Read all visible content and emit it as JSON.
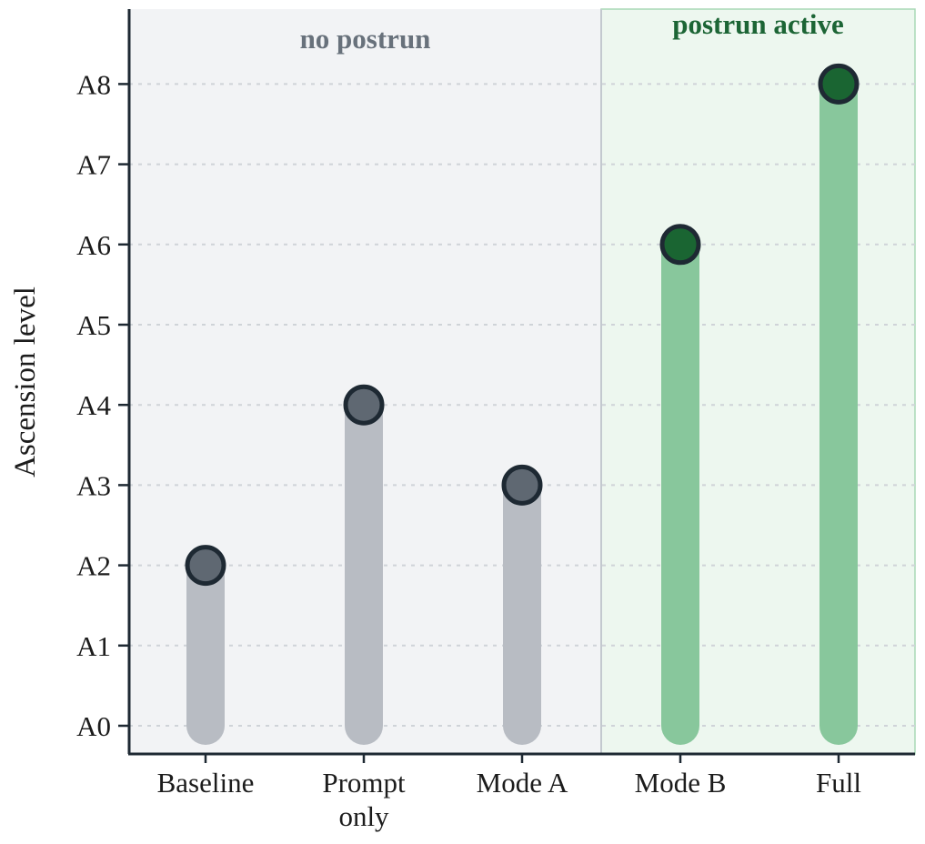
{
  "chart_data": {
    "type": "lollipop",
    "ylabel": "Ascension level",
    "y_ticks": [
      "A0",
      "A1",
      "A2",
      "A3",
      "A4",
      "A5",
      "A6",
      "A7",
      "A8"
    ],
    "ylim": [
      0,
      8
    ],
    "grid": "horizontal dotted",
    "categories": [
      {
        "label_lines": [
          "Baseline"
        ],
        "value": 2,
        "group": "no postrun"
      },
      {
        "label_lines": [
          "Prompt",
          "only"
        ],
        "value": 4,
        "group": "no postrun"
      },
      {
        "label_lines": [
          "Mode A"
        ],
        "value": 3,
        "group": "no postrun"
      },
      {
        "label_lines": [
          "Mode B"
        ],
        "value": 6,
        "group": "postrun active"
      },
      {
        "label_lines": [
          "Full"
        ],
        "value": 8,
        "group": "postrun active"
      }
    ],
    "regions": [
      {
        "label": "no postrun",
        "categories": [
          0,
          1,
          2
        ],
        "background": "#f2f3f5",
        "label_color": "#68717b",
        "stem_color": "#b8bcc3",
        "dot_color": "#5f6872"
      },
      {
        "label": "postrun active",
        "categories": [
          3,
          4
        ],
        "background": "#edf7ef",
        "label_color": "#1c6535",
        "stem_color": "#88c79c",
        "dot_color": "#1a6532"
      }
    ],
    "dot_outline_color": "#1e2933"
  }
}
